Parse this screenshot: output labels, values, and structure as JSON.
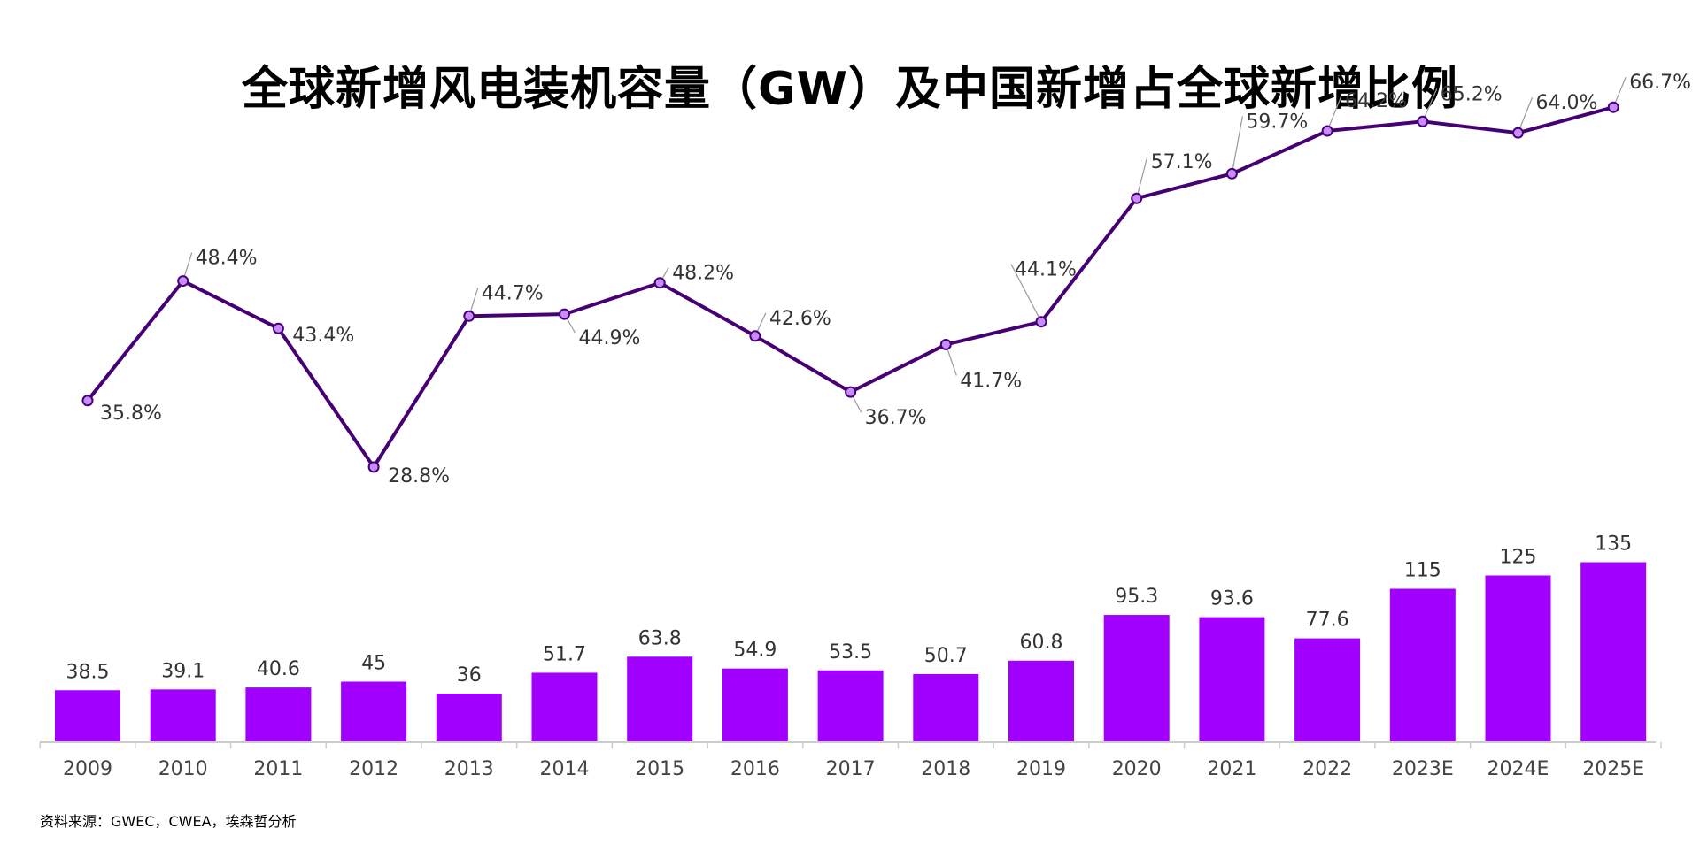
{
  "chart_data": {
    "type": "bar",
    "title": "全球新增风电装机容量（GW）及中国新增占全球新增比例",
    "source": "资料来源：GWEC，CWEA，埃森哲分析",
    "categories": [
      "2009",
      "2010",
      "2011",
      "2012",
      "2013",
      "2014",
      "2015",
      "2016",
      "2017",
      "2018",
      "2019",
      "2020",
      "2021",
      "2022",
      "2023E",
      "2024E",
      "2025E"
    ],
    "bar_values": [
      38.5,
      39.1,
      40.6,
      45,
      36,
      51.7,
      63.8,
      54.9,
      53.5,
      50.7,
      60.8,
      95.3,
      93.6,
      77.6,
      115,
      125,
      135
    ],
    "bar_labels": [
      "38.5",
      "39.1",
      "40.6",
      "45",
      "36",
      "51.7",
      "63.8",
      "54.9",
      "53.5",
      "50.7",
      "60.8",
      "95.3",
      "93.6",
      "77.6",
      "115",
      "125",
      "135"
    ],
    "line_values": [
      35.8,
      48.4,
      43.4,
      28.8,
      44.7,
      44.9,
      48.2,
      42.6,
      36.7,
      41.7,
      44.1,
      57.1,
      59.7,
      64.2,
      65.2,
      64.0,
      66.7
    ],
    "line_labels": [
      "35.8%",
      "48.4%",
      "43.4%",
      "28.8%",
      "44.7%",
      "44.9%",
      "48.2%",
      "42.6%",
      "36.7%",
      "41.7%",
      "44.1%",
      "57.1%",
      "59.7%",
      "64.2%",
      "65.2%",
      "64.0%",
      "66.7%"
    ],
    "grid": false,
    "legend": "none",
    "colors": {
      "bar": "#a100ff",
      "line": "#460073",
      "marker_fill": "#c98cff",
      "axis": "#cccccc"
    }
  }
}
